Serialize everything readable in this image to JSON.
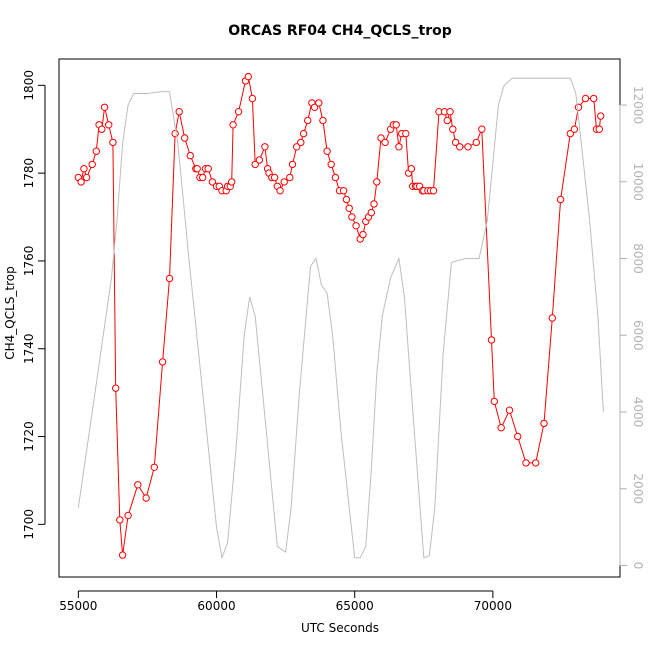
{
  "chart_data": {
    "type": "line",
    "title": "ORCAS RF04 CH4_QCLS_trop",
    "xlabel": "UTC Seconds",
    "ylabel": "CH4_QCLS_trop",
    "xlim": [
      54300,
      74600
    ],
    "ylim": [
      1688,
      1806
    ],
    "y2lim": [
      -300,
      13200
    ],
    "x_ticks": [
      55000,
      60000,
      65000,
      70000
    ],
    "y_ticks": [
      1700,
      1720,
      1740,
      1760,
      1780,
      1800
    ],
    "y2_ticks": [
      0,
      2000,
      4000,
      6000,
      8000,
      10000,
      12000
    ],
    "colors": {
      "ch4": "#ff0000",
      "altitude": "#bebebe",
      "axis": "#000000",
      "right_axis": "#b3b3b3"
    },
    "series": [
      {
        "color": "#ff0000",
        "style": "line+open-circles",
        "axis": "left",
        "x": [
          55000,
          55100,
          55200,
          55300,
          55500,
          55650,
          55750,
          55850,
          55950,
          56100,
          56250,
          56350,
          56500,
          56600,
          56800,
          57150,
          57450,
          57750,
          58050,
          58300,
          58500,
          58650,
          58850,
          59050,
          59250,
          59300,
          59400,
          59500,
          59600,
          59700,
          59850,
          60000,
          60100,
          60200,
          60350,
          60400,
          60500,
          60550,
          60600,
          60800,
          61050,
          61150,
          61300,
          61400,
          61550,
          61750,
          61850,
          61900,
          62000,
          62100,
          62200,
          62300,
          62450,
          62650,
          62750,
          62900,
          63050,
          63150,
          63300,
          63450,
          63550,
          63700,
          63850,
          64000,
          64150,
          64300,
          64450,
          64600,
          64700,
          64800,
          64900,
          65050,
          65200,
          65300,
          65400,
          65500,
          65600,
          65700,
          65800,
          65950,
          66100,
          66300,
          66400,
          66500,
          66600,
          66700,
          66850,
          66950,
          67050,
          67100,
          67200,
          67250,
          67350,
          67450,
          67500,
          67650,
          67750,
          67850,
          68050,
          68250,
          68350,
          68450,
          68550,
          68650,
          68800,
          69100,
          69400,
          69600,
          69950,
          70050,
          70300,
          70600,
          70900,
          71200,
          71550,
          71850,
          72150,
          72450,
          72800,
          72950,
          73100,
          73350,
          73650,
          73750,
          73850,
          73900
        ],
        "values": [
          1779,
          1778,
          1781,
          1779,
          1782,
          1785,
          1791,
          1790,
          1795,
          1791,
          1787,
          1731,
          1701,
          1693,
          1702,
          1709,
          1706,
          1713,
          1737,
          1756,
          1789,
          1794,
          1788,
          1784,
          1781,
          1781,
          1779,
          1779,
          1781,
          1781,
          1778,
          1777,
          1777,
          1776,
          1776,
          1777,
          1777,
          1778,
          1791,
          1794,
          1801,
          1802,
          1797,
          1782,
          1783,
          1786,
          1781,
          1780,
          1779,
          1779,
          1777,
          1776,
          1778,
          1779,
          1782,
          1786,
          1787,
          1789,
          1792,
          1796,
          1795,
          1796,
          1792,
          1785,
          1782,
          1779,
          1776,
          1776,
          1774,
          1772,
          1770,
          1768,
          1765,
          1766,
          1769,
          1770,
          1771,
          1773,
          1778,
          1788,
          1787,
          1790,
          1791,
          1791,
          1786,
          1789,
          1789,
          1780,
          1781,
          1777,
          1777,
          1777,
          1777,
          1776,
          1776,
          1776,
          1776,
          1776,
          1794,
          1794,
          1792,
          1794,
          1790,
          1787,
          1786,
          1786,
          1787,
          1790,
          1742,
          1728,
          1722,
          1726,
          1720,
          1714,
          1714,
          1723,
          1747,
          1774,
          1789,
          1790,
          1795,
          1797,
          1797,
          1790,
          1790,
          1793
        ]
      },
      {
        "color": "#bebebe",
        "style": "line",
        "axis": "right",
        "x": [
          55000,
          55500,
          56000,
          56200,
          56400,
          56600,
          56800,
          57000,
          57500,
          58000,
          58300,
          58600,
          58800,
          59000,
          59500,
          60000,
          60200,
          60400,
          60700,
          61000,
          61200,
          61400,
          61800,
          62200,
          62500,
          62700,
          63000,
          63400,
          63600,
          63800,
          64000,
          64200,
          64500,
          65000,
          65200,
          65400,
          65600,
          65800,
          66000,
          66300,
          66600,
          66800,
          67000,
          67500,
          67700,
          67900,
          68200,
          68500,
          69000,
          69500,
          69800,
          70000,
          70200,
          70400,
          70700,
          71000,
          72000,
          72800,
          73000,
          73200,
          73500,
          73800,
          74000
        ],
        "values": [
          1500,
          4000,
          6500,
          7500,
          9000,
          11000,
          12000,
          12300,
          12300,
          12350,
          12350,
          11000,
          9500,
          8000,
          4500,
          1000,
          200,
          600,
          3000,
          6000,
          7000,
          6500,
          3500,
          500,
          350,
          1500,
          4500,
          7800,
          8000,
          7300,
          7100,
          6000,
          3500,
          200,
          200,
          500,
          2500,
          5000,
          6500,
          7500,
          8000,
          7000,
          5000,
          200,
          250,
          1500,
          5500,
          7900,
          8000,
          8000,
          9000,
          10500,
          12000,
          12500,
          12700,
          12700,
          12700,
          12700,
          12300,
          11000,
          9000,
          6500,
          4000
        ]
      }
    ]
  }
}
